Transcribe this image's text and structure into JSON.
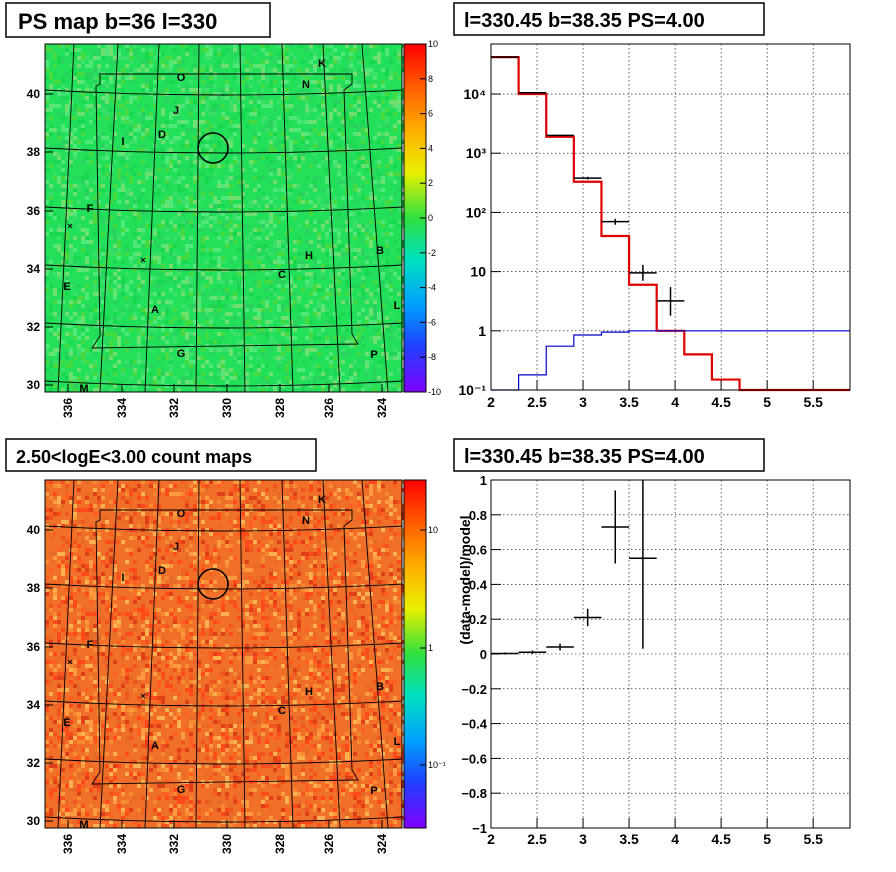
{
  "colors": {
    "data": "#000000",
    "model": "#e00000",
    "bkg": "#0000cc",
    "grid": "#000000",
    "frame": "#000000"
  },
  "panels": {
    "ps_map": {
      "title": "PS map b=36 l=330",
      "palette": "rainbow",
      "base_color": "#22e05a",
      "colorbar_ticks": [
        "10",
        "8",
        "6",
        "4",
        "2",
        "0",
        "-2",
        "-4",
        "-6",
        "-8",
        "-10"
      ],
      "y_ticks": [
        "40",
        "38",
        "36",
        "34",
        "32",
        "30"
      ],
      "x_ticks": [
        "336",
        "334",
        "332",
        "330",
        "328",
        "326",
        "324"
      ]
    },
    "count_map": {
      "title": "2.50<logE<3.00 count maps",
      "palette": "rainbow",
      "base_color": "#f0702a",
      "colorbar_ticks": [
        "10",
        "1",
        "10⁻¹"
      ],
      "y_ticks": [
        "40",
        "38",
        "36",
        "34",
        "32",
        "30"
      ],
      "x_ticks": [
        "336",
        "334",
        "332",
        "330",
        "328",
        "326",
        "324"
      ]
    }
  },
  "map_labels": [
    "O",
    "K",
    "N",
    "J",
    "D",
    "I",
    "F",
    "H",
    "B",
    "C",
    "E",
    "L",
    "A",
    "G",
    "P",
    "M"
  ],
  "chart_data": [
    {
      "type": "line",
      "panel": "top-right",
      "title": "l=330.45 b=38.35 PS=4.00",
      "xlabel": "",
      "ylabel": "",
      "xlim": [
        2.0,
        5.9
      ],
      "ylim": [
        0.1,
        70000
      ],
      "yscale": "log",
      "grid": true,
      "x_ticks": [
        "2",
        "2.5",
        "3",
        "3.5",
        "4",
        "4.5",
        "5",
        "5.5"
      ],
      "y_ticks": [
        "10⁻¹",
        "1",
        "10",
        "10²",
        "10³",
        "10⁴"
      ],
      "series": [
        {
          "kind": "step",
          "color": "#e00000",
          "bins": [
            2.0,
            2.3,
            2.6,
            2.9,
            3.2,
            3.5,
            3.8,
            4.1,
            4.4,
            4.7,
            5.0,
            5.3,
            5.6,
            5.9
          ],
          "values": [
            42000,
            10000,
            1900,
            330,
            40,
            6,
            1.0,
            0.4,
            0.15,
            0.1,
            0.1,
            0.1,
            0.1
          ]
        },
        {
          "kind": "step",
          "color": "#0000cc",
          "bins": [
            2.0,
            2.3,
            2.6,
            2.9,
            3.2,
            3.5,
            3.8,
            4.1,
            4.4,
            4.7,
            5.0,
            5.3,
            5.6,
            5.9
          ],
          "values": [
            0.08,
            0.18,
            0.55,
            0.85,
            0.95,
            1.0,
            1.0,
            1.0,
            1.0,
            1.0,
            1.0,
            1.0,
            1.0
          ]
        },
        {
          "kind": "errorbar",
          "color": "#000000",
          "x": [
            2.15,
            2.45,
            2.75,
            3.05,
            3.35,
            3.65,
            3.95
          ],
          "xerr": [
            0.15,
            0.15,
            0.15,
            0.15,
            0.15,
            0.15,
            0.15
          ],
          "y": [
            42000,
            10500,
            2000,
            380,
            70,
            9.5,
            3.2
          ],
          "ylo": [
            41800,
            10400,
            1950,
            360,
            62,
            7.0,
            1.8
          ],
          "yhi": [
            42200,
            10600,
            2050,
            400,
            78,
            13,
            5.5
          ]
        }
      ]
    },
    {
      "type": "scatter",
      "panel": "bottom-right",
      "title": "l=330.45 b=38.35 PS=4.00",
      "xlabel": "",
      "ylabel": "(data-model)/model",
      "xlim": [
        2.0,
        5.9
      ],
      "ylim": [
        -1.0,
        1.0
      ],
      "grid": true,
      "x_ticks": [
        "2",
        "2.5",
        "3",
        "3.5",
        "4",
        "4.5",
        "5",
        "5.5"
      ],
      "y_ticks": [
        "1",
        "0.8",
        "0.6",
        "0.4",
        "0.2",
        "0",
        "−0.2",
        "−0.4",
        "−0.6",
        "−0.8",
        "−1"
      ],
      "series": [
        {
          "kind": "errorbar",
          "color": "#000000",
          "x": [
            2.15,
            2.45,
            2.75,
            3.05,
            3.35,
            3.65
          ],
          "xerr": [
            0.15,
            0.15,
            0.15,
            0.15,
            0.15,
            0.15
          ],
          "y": [
            0.003,
            0.01,
            0.04,
            0.21,
            0.73,
            0.55
          ],
          "ylo": [
            -0.003,
            0.0,
            0.02,
            0.16,
            0.52,
            0.03
          ],
          "yhi": [
            0.009,
            0.02,
            0.06,
            0.26,
            0.94,
            1.0
          ]
        }
      ]
    }
  ]
}
